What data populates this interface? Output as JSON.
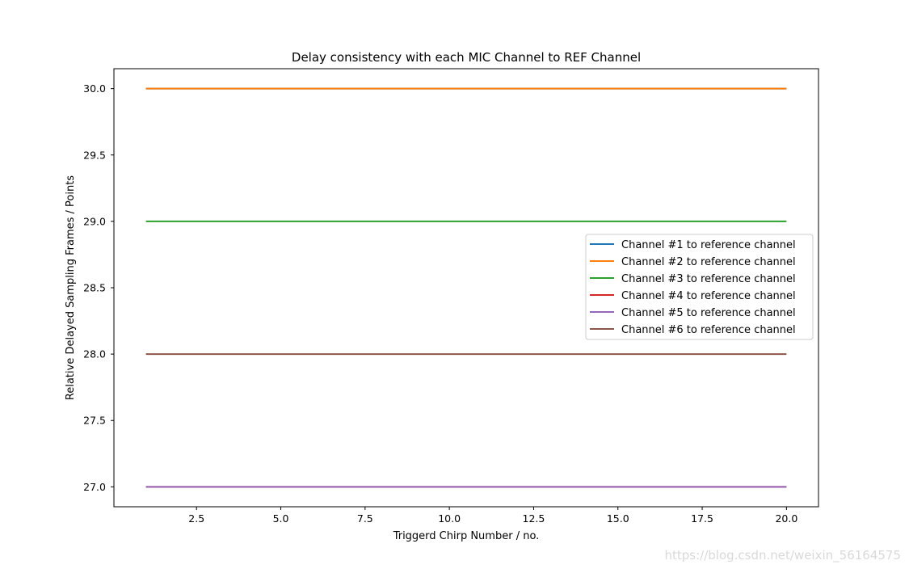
{
  "chart_data": {
    "type": "line",
    "title": "Delay consistency with each MIC Channel to REF Channel",
    "xlabel": "Triggerd Chirp Number / no.",
    "ylabel": "Relative Delayed Sampling Frames / Points",
    "xlim": [
      0.05,
      20.95
    ],
    "ylim": [
      26.85,
      30.15
    ],
    "xticks": [
      2.5,
      5.0,
      7.5,
      10.0,
      12.5,
      15.0,
      17.5,
      20.0
    ],
    "xtick_labels": [
      "2.5",
      "5.0",
      "7.5",
      "10.0",
      "12.5",
      "15.0",
      "17.5",
      "20.0"
    ],
    "yticks": [
      27.0,
      27.5,
      28.0,
      28.5,
      29.0,
      29.5,
      30.0
    ],
    "ytick_labels": [
      "27.0",
      "27.5",
      "28.0",
      "28.5",
      "29.0",
      "29.5",
      "30.0"
    ],
    "grid": false,
    "legend_position": "right",
    "x": [
      1,
      20
    ],
    "series": [
      {
        "name": "Channel #1 to reference channel",
        "color": "#1f77b4",
        "values": [
          30,
          30
        ]
      },
      {
        "name": "Channel #2 to reference channel",
        "color": "#ff7f0e",
        "values": [
          30,
          30
        ]
      },
      {
        "name": "Channel #3 to reference channel",
        "color": "#2ca02c",
        "values": [
          29,
          29
        ]
      },
      {
        "name": "Channel #4 to reference channel",
        "color": "#d62728",
        "values": [
          27,
          27
        ]
      },
      {
        "name": "Channel #5 to reference channel",
        "color": "#9467bd",
        "values": [
          27,
          27
        ]
      },
      {
        "name": "Channel #6 to reference channel",
        "color": "#8c564b",
        "values": [
          28,
          28
        ]
      }
    ]
  },
  "watermark": "https://blog.csdn.net/weixin_56164575"
}
